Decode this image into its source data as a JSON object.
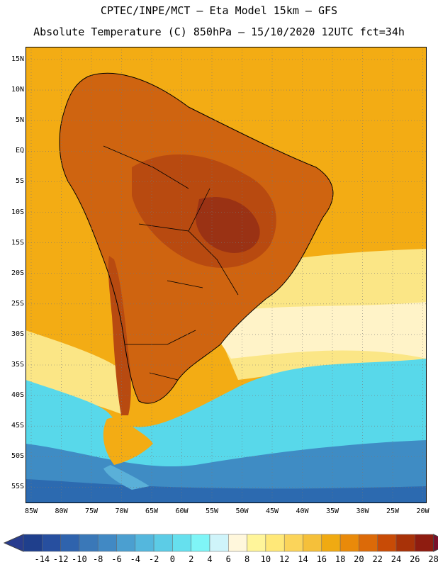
{
  "title_line1": "CPTEC/INPE/MCT –  Eta Model 15km – GFS",
  "title_line2": "Absolute Temperature (C) 850hPa – 15/10/2020 12UTC fct=34h",
  "lat_labels": [
    "15N",
    "10N",
    "5N",
    "EQ",
    "5S",
    "10S",
    "15S",
    "20S",
    "25S",
    "30S",
    "35S",
    "40S",
    "45S",
    "50S",
    "55S"
  ],
  "lon_labels": [
    "85W",
    "80W",
    "75W",
    "70W",
    "65W",
    "60W",
    "55W",
    "50W",
    "45W",
    "40W",
    "35W",
    "30W",
    "25W",
    "20W"
  ],
  "colorbar": {
    "labels": [
      "-14",
      "-12",
      "-10",
      "-8",
      "-6",
      "-4",
      "-2",
      "0",
      "2",
      "4",
      "6",
      "8",
      "10",
      "12",
      "14",
      "16",
      "18",
      "20",
      "22",
      "24",
      "26",
      "28"
    ],
    "colors": [
      "#1f3f8c",
      "#274f9f",
      "#2f63ad",
      "#3a78b8",
      "#4189c4",
      "#4b9fd0",
      "#54b7dd",
      "#5ccce6",
      "#66e0ee",
      "#7ff5f7",
      "#cff4fa",
      "#fff7dc",
      "#fff59a",
      "#ffe878",
      "#fbd45a",
      "#f5c03a",
      "#f0aa12",
      "#e98a0a",
      "#dc6a08",
      "#c84b06",
      "#a83208",
      "#8e1c10"
    ],
    "under_color": "#283c8e",
    "over_color": "#7a0f2a"
  },
  "map_colors": {
    "ocean_warm": "#f3ac14",
    "land_hot": "#cf6410",
    "land_hotter": "#b84a10",
    "land_hottest": "#9a3214",
    "pale_yellow": "#fbe686",
    "cream": "#fff3c8",
    "cyan": "#58d8ea",
    "cyan_dark": "#48c2e0",
    "blue_light": "#5ab0d8",
    "blue_mid": "#3f8cc4",
    "blue_dark": "#2c6ab0"
  }
}
